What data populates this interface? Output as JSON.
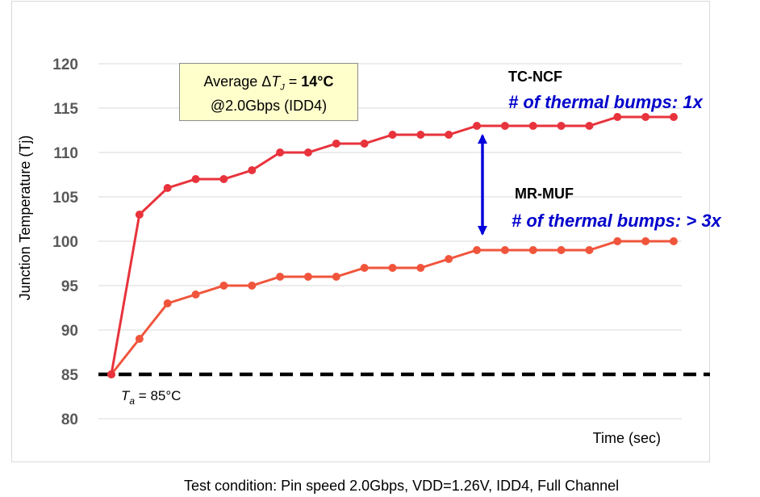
{
  "chart_data": {
    "type": "line",
    "ylabel": "Junction Temperature (Tj)",
    "xlabel": "Time (sec)",
    "ylim": [
      80,
      120
    ],
    "yticks": [
      80,
      85,
      90,
      95,
      100,
      105,
      110,
      115,
      120
    ],
    "grid": "horizontal",
    "series": [
      {
        "name": "TC-NCF",
        "note": "# of thermal bumps: 1x",
        "color": "#e8333c",
        "values": [
          85,
          103,
          106,
          107,
          107,
          108,
          110,
          110,
          111,
          111,
          112,
          112,
          112,
          113,
          113,
          113,
          113,
          113,
          114,
          114,
          114
        ]
      },
      {
        "name": "MR-MUF",
        "note": "# of thermal bumps: > 3x",
        "color": "#f0553c",
        "values": [
          85,
          89,
          93,
          94,
          95,
          95,
          96,
          96,
          96,
          97,
          97,
          97,
          98,
          99,
          99,
          99,
          99,
          99,
          100,
          100,
          100
        ]
      }
    ],
    "baseline": {
      "value": 85,
      "label_prefix": "T",
      "label_sub": "a",
      "label_suffix": " = 85°C"
    },
    "annotation": {
      "line1_prefix": "Average ",
      "delta": "Δ",
      "t": "T",
      "t_sub": "J",
      "line1_eq": " = ",
      "line1_value": "14°C",
      "line2": "@2.0Gbps (IDD4)"
    },
    "arrow_color": "#0000dd"
  },
  "footer": {
    "test_condition": "Test condition: Pin speed 2.0Gbps, VDD=1.26V, IDD4, Full Channel"
  }
}
